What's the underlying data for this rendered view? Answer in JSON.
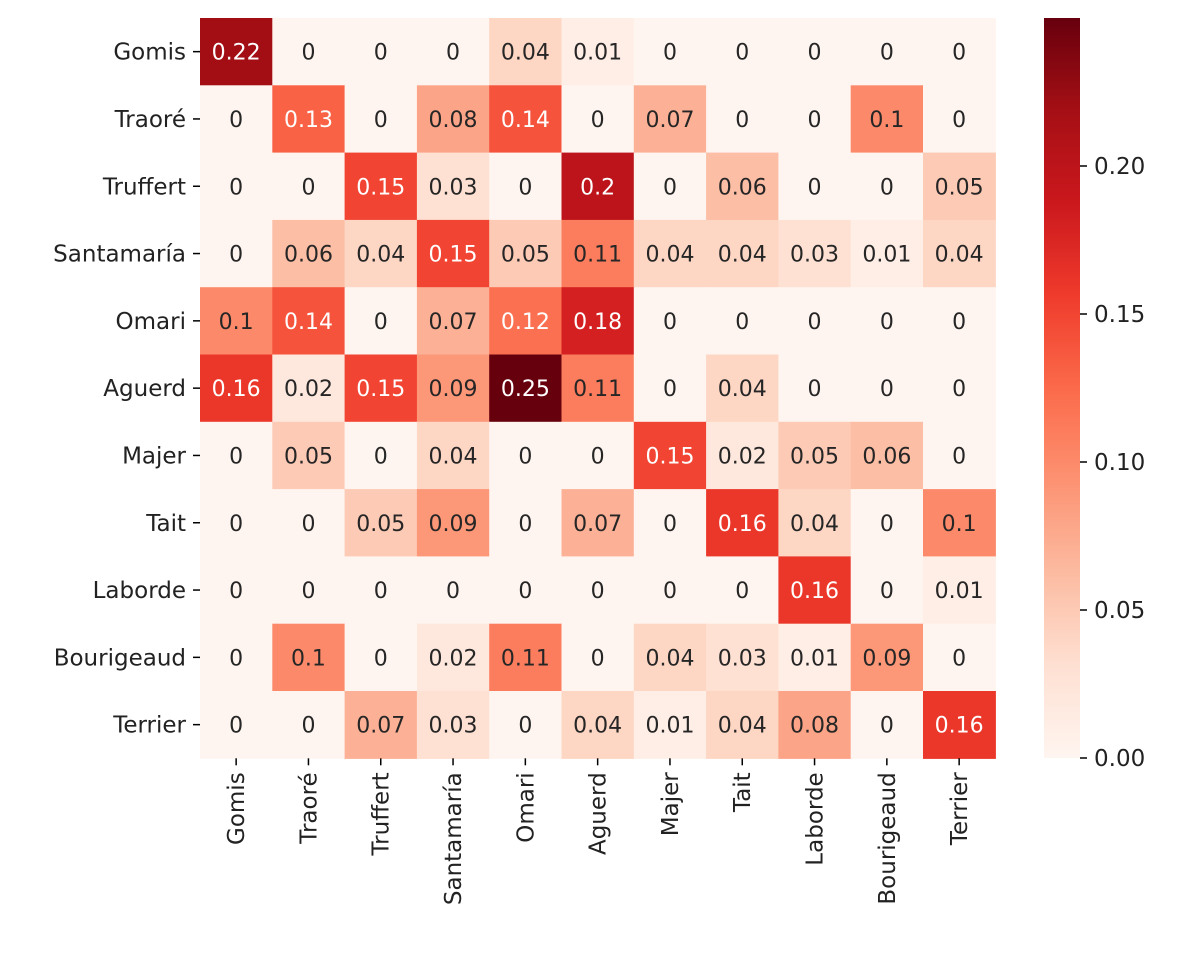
{
  "chart_data": {
    "type": "heatmap",
    "title": "",
    "xlabel": "",
    "ylabel": "",
    "rows": [
      "Gomis",
      "Traoré",
      "Truffert",
      "Santamaría",
      "Omari",
      "Aguerd",
      "Majer",
      "Tait",
      "Laborde",
      "Bourigeaud",
      "Terrier"
    ],
    "cols": [
      "Gomis",
      "Traoré",
      "Truffert",
      "Santamaría",
      "Omari",
      "Aguerd",
      "Majer",
      "Tait",
      "Laborde",
      "Bourigeaud",
      "Terrier"
    ],
    "values": [
      [
        0.22,
        0,
        0,
        0,
        0.04,
        0.01,
        0,
        0,
        0,
        0,
        0
      ],
      [
        0,
        0.13,
        0,
        0.08,
        0.14,
        0,
        0.07,
        0,
        0,
        0.1,
        0
      ],
      [
        0,
        0,
        0.15,
        0.03,
        0,
        0.2,
        0,
        0.06,
        0,
        0,
        0.05
      ],
      [
        0,
        0.06,
        0.04,
        0.15,
        0.05,
        0.11,
        0.04,
        0.04,
        0.03,
        0.01,
        0.04
      ],
      [
        0.1,
        0.14,
        0,
        0.07,
        0.12,
        0.18,
        0,
        0,
        0,
        0,
        0
      ],
      [
        0.16,
        0.02,
        0.15,
        0.09,
        0.25,
        0.11,
        0,
        0.04,
        0,
        0,
        0
      ],
      [
        0,
        0.05,
        0,
        0.04,
        0,
        0,
        0.15,
        0.02,
        0.05,
        0.06,
        0
      ],
      [
        0,
        0,
        0.05,
        0.09,
        0,
        0.07,
        0,
        0.16,
        0.04,
        0,
        0.1
      ],
      [
        0,
        0,
        0,
        0,
        0,
        0,
        0,
        0,
        0.16,
        0,
        0.01
      ],
      [
        0,
        0.1,
        0,
        0.02,
        0.11,
        0,
        0.04,
        0.03,
        0.01,
        0.09,
        0
      ],
      [
        0,
        0,
        0.07,
        0.03,
        0,
        0.04,
        0.01,
        0.04,
        0.08,
        0,
        0.16
      ]
    ],
    "colormap": "Reds",
    "colormap_stops": [
      "#fff5f0",
      "#fee0d2",
      "#fcbba1",
      "#fc9272",
      "#fb6a4a",
      "#ef3b2c",
      "#cb181d",
      "#a50f15",
      "#67000d"
    ],
    "vmin": 0,
    "vmax": 0.25,
    "colorbar_ticks": [
      "0.00",
      "0.05",
      "0.10",
      "0.15",
      "0.20"
    ],
    "colorbar_tick_values": [
      0,
      0.05,
      0.1,
      0.15,
      0.2
    ],
    "annotations": true,
    "grid": false
  }
}
